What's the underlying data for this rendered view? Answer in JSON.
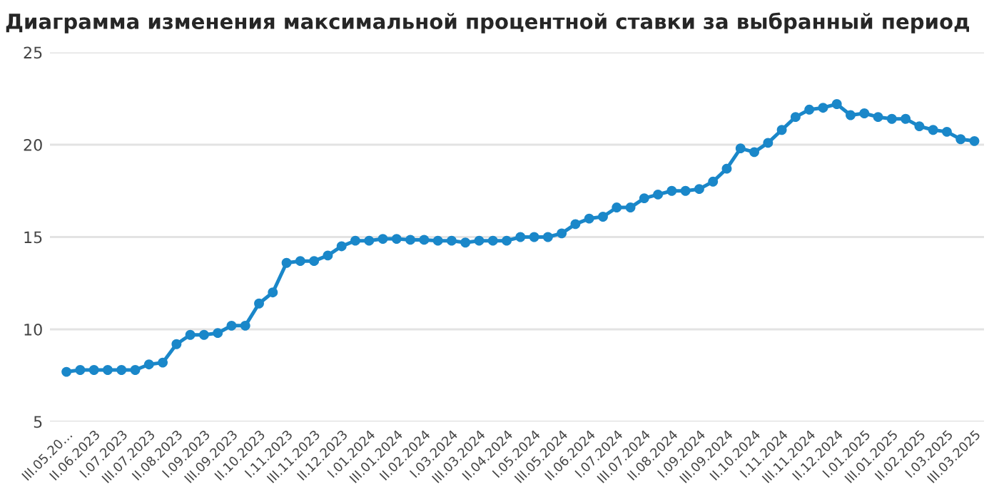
{
  "chart_data": {
    "type": "line",
    "title": "Диаграмма изменения максимальной процентной ставки за выбранный период",
    "categories": [
      "III.05.20…",
      null,
      "II.06.2023",
      null,
      "I.07.2023",
      null,
      "III.07.2023",
      null,
      "II.08.2023",
      null,
      "I.09.2023",
      null,
      "III.09.2023",
      null,
      "II.10.2023",
      null,
      "I.11.2023",
      null,
      "III.11.2023",
      null,
      "II.12.2023",
      null,
      "I.01.2024",
      null,
      "III.01.2024",
      null,
      "II.02.2024",
      null,
      "I.03.2024",
      null,
      "III.03.2024",
      null,
      "II.04.2024",
      null,
      "I.05.2024",
      null,
      "III.05.2024",
      null,
      "II.06.2024",
      null,
      "I.07.2024",
      null,
      "III.07.2024",
      null,
      "II.08.2024",
      null,
      "I.09.2024",
      null,
      "III.09.2024",
      null,
      "II.10.2024",
      null,
      "I.11.2024",
      null,
      "III.11.2024",
      null,
      "II.12.2024",
      null,
      "I.01.2025",
      null,
      "III.01.2025",
      null,
      "II.02.2025",
      null,
      "I.03.2025",
      null,
      "III.03.2025"
    ],
    "series": [
      {
        "color": "#1a87c9",
        "values": [
          7.7,
          7.8,
          7.8,
          7.8,
          7.8,
          7.8,
          8.1,
          8.2,
          9.2,
          9.7,
          9.7,
          9.8,
          10.2,
          10.2,
          11.4,
          12.0,
          13.6,
          13.7,
          13.7,
          14.0,
          14.5,
          14.8,
          14.8,
          14.9,
          14.9,
          14.85,
          14.85,
          14.8,
          14.8,
          14.7,
          14.8,
          14.8,
          14.8,
          15.0,
          15.0,
          15.0,
          15.2,
          15.7,
          16.0,
          16.1,
          16.6,
          16.6,
          17.1,
          17.3,
          17.5,
          17.5,
          17.6,
          18.0,
          18.7,
          19.8,
          19.6,
          20.1,
          20.8,
          21.5,
          21.9,
          22.0,
          22.2,
          21.6,
          21.7,
          21.5,
          21.4,
          21.4,
          21.0,
          20.8,
          20.7,
          20.3,
          20.2
        ]
      }
    ],
    "ylim": [
      5,
      25
    ],
    "yticks": [
      5,
      10,
      15,
      20,
      25
    ],
    "grid": "y",
    "marker": "circle",
    "line_style": "solid"
  }
}
